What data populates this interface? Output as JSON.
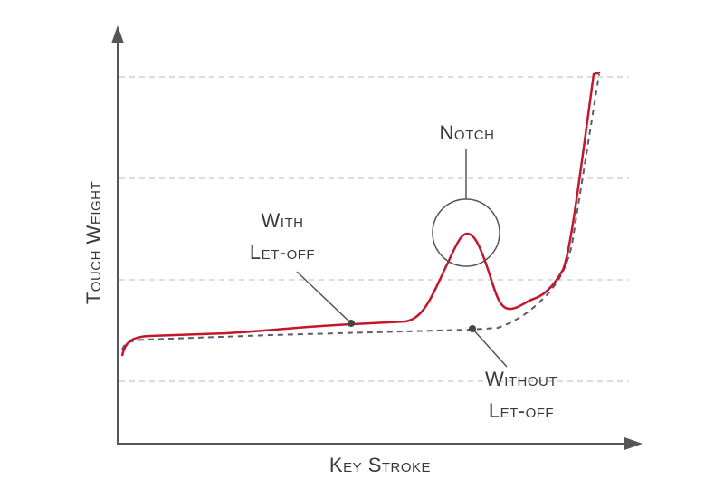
{
  "y_axis_label": "Touch Weight",
  "x_axis_label": "Key Stroke",
  "annotations": [
    {
      "lines": [
        "With",
        "Let-off"
      ]
    },
    {
      "lines": [
        "Notch"
      ]
    },
    {
      "lines": [
        "Without",
        "Let-off"
      ]
    }
  ]
}
